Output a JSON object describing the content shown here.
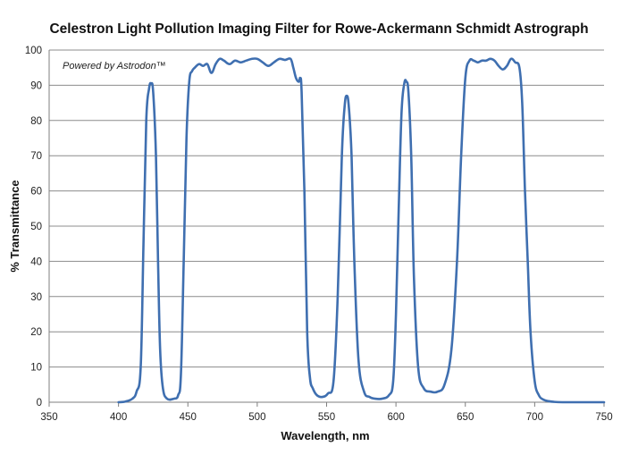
{
  "chart_data": {
    "type": "line",
    "title": "Celestron Light Pollution Imaging Filter for Rowe-Ackermann Schmidt Astrograph",
    "xlabel": "Wavelength, nm",
    "ylabel": "% Transmittance",
    "annotation": "Powered by Astrodon™",
    "xlim": [
      350,
      750
    ],
    "ylim": [
      0,
      100
    ],
    "x_ticks": [
      "350",
      "400",
      "450",
      "500",
      "550",
      "600",
      "650",
      "700",
      "750"
    ],
    "y_ticks": [
      "0",
      "10",
      "20",
      "30",
      "40",
      "50",
      "60",
      "70",
      "80",
      "90",
      "100"
    ],
    "grid": "horizontal",
    "line_color": "#3f6fb0",
    "series": [
      {
        "x": [
          400,
          405,
          410,
          413,
          416,
          418,
          420,
          422,
          423.5,
          425,
          427,
          428.5,
          430,
          432,
          435,
          440,
          443,
          445,
          447,
          449,
          451,
          453,
          455,
          458,
          461,
          464,
          467,
          470,
          473,
          476,
          480,
          484,
          488,
          492,
          496,
          500,
          504,
          508,
          512,
          516,
          520,
          524,
          526,
          528,
          530,
          531,
          532,
          534,
          536,
          538,
          540,
          543,
          547,
          551,
          555,
          558,
          561,
          563,
          564.5,
          566,
          568,
          570,
          573,
          577,
          581,
          585,
          590,
          595,
          598,
          600,
          602,
          604,
          606,
          607.5,
          609,
          611,
          613,
          616,
          620,
          625,
          630,
          635,
          640,
          644,
          647,
          650,
          653,
          656,
          659,
          662,
          665,
          668,
          671,
          674,
          677,
          680,
          683,
          686,
          689,
          691,
          693,
          695,
          697,
          700,
          703,
          706,
          710,
          714,
          720,
          730,
          740,
          750
        ],
        "y": [
          0,
          0.2,
          1,
          3,
          10,
          45,
          80,
          89,
          90.5,
          88,
          70,
          40,
          15,
          4,
          1,
          1,
          2,
          8,
          40,
          75,
          91,
          94,
          95,
          96,
          95.5,
          96,
          93.5,
          96,
          97.5,
          97,
          96,
          97,
          96.5,
          97,
          97.5,
          97.5,
          96.5,
          95.5,
          96.5,
          97.5,
          97.2,
          97.5,
          95,
          92,
          91,
          92,
          88,
          60,
          20,
          7,
          4,
          2,
          1.5,
          2.5,
          6,
          30,
          70,
          84,
          87,
          84,
          70,
          40,
          12,
          3,
          1.5,
          1,
          1,
          2,
          6,
          25,
          55,
          82,
          90.5,
          91,
          88,
          70,
          35,
          10,
          4,
          3,
          3,
          5,
          15,
          40,
          70,
          92,
          97,
          97,
          96.5,
          97,
          97,
          97.5,
          97,
          95.5,
          94.5,
          95.5,
          97.5,
          96.5,
          95,
          85,
          60,
          40,
          20,
          6,
          2,
          0.8,
          0.3,
          0.1,
          0,
          0,
          0,
          0
        ]
      }
    ]
  }
}
